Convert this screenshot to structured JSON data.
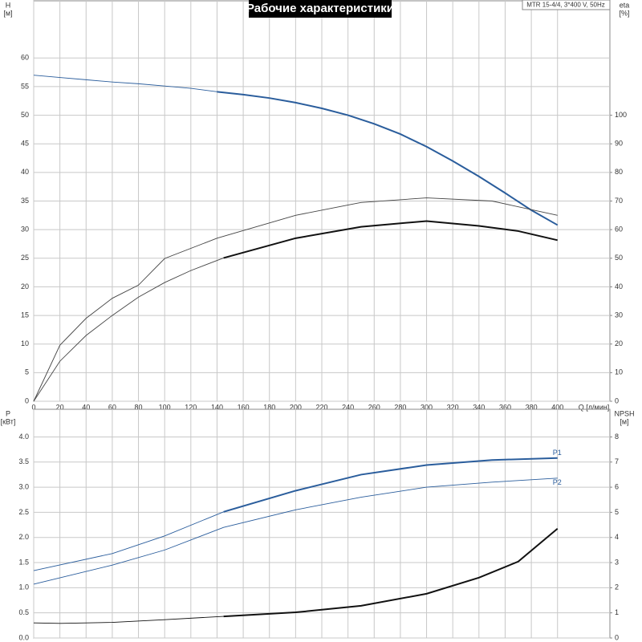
{
  "title": "Рабочие характеристики",
  "note": "MTR 15-4/4, 3*400 V, 50Hz",
  "chart_data": [
    {
      "type": "line",
      "ylabel": "H",
      "yunit": "[м]",
      "y2label": "eta",
      "y2unit": "[%]",
      "xlabel": "Q [л/мин]",
      "xlim": [
        0,
        440
      ],
      "xticks": [
        0,
        20,
        40,
        60,
        80,
        100,
        120,
        140,
        160,
        180,
        200,
        220,
        240,
        260,
        280,
        300,
        320,
        340,
        360,
        380,
        400
      ],
      "ylim": [
        0,
        70
      ],
      "yticks": [
        0,
        5,
        10,
        15,
        20,
        25,
        30,
        35,
        40,
        45,
        50,
        55,
        60
      ],
      "y2lim": [
        0,
        140
      ],
      "y2ticks": [
        0,
        10,
        20,
        30,
        40,
        50,
        60,
        70,
        80,
        90,
        100
      ],
      "grid": true,
      "series": [
        {
          "color": "#2a5d9c",
          "weight": "thin",
          "x": [
            0,
            20,
            40,
            60,
            80,
            100,
            120,
            140
          ],
          "values": [
            57,
            56.6,
            56.2,
            55.8,
            55.5,
            55.1,
            54.7,
            54.1
          ]
        },
        {
          "color": "#2a5d9c",
          "weight": "thick",
          "x": [
            140,
            160,
            180,
            200,
            220,
            240,
            260,
            280,
            300,
            320,
            340,
            360,
            380,
            400
          ],
          "values": [
            54.1,
            53.6,
            53,
            52.2,
            51.2,
            50,
            48.5,
            46.7,
            44.5,
            42,
            39.3,
            36.4,
            33.4,
            30.8
          ]
        },
        {
          "color": "#444444",
          "weight": "thin",
          "axis": "y2",
          "x": [
            0,
            20,
            40,
            60,
            80,
            100,
            140,
            200,
            250,
            300,
            350,
            400
          ],
          "values": [
            0,
            19.6,
            29,
            36,
            40.6,
            49.9,
            57,
            65,
            69.5,
            71.1,
            70,
            65
          ]
        },
        {
          "color": "#444444",
          "weight": "thin",
          "axis": "y2",
          "x": [
            0,
            20,
            40,
            60,
            80,
            100,
            120,
            145
          ],
          "values": [
            0,
            14,
            23,
            30,
            36.4,
            41.5,
            45.7,
            50.1
          ]
        },
        {
          "color": "#111111",
          "weight": "thick",
          "axis": "y2",
          "x": [
            145,
            200,
            250,
            300,
            340,
            370,
            400
          ],
          "values": [
            50.1,
            57,
            61,
            63,
            61.3,
            59.5,
            56.3
          ]
        }
      ]
    },
    {
      "type": "line",
      "ylabel": "P",
      "yunit": "[кВт]",
      "y2label": "NPSH",
      "y2unit": "[м]",
      "xlim": [
        0,
        440
      ],
      "xticks": [
        0,
        20,
        40,
        60,
        80,
        100,
        120,
        140,
        160,
        180,
        200,
        220,
        240,
        260,
        280,
        300,
        320,
        340,
        360,
        380,
        400
      ],
      "ylim": [
        0,
        4.55
      ],
      "yticks": [
        {
          "value": 0,
          "label": "0.0"
        },
        0.5,
        {
          "value": 1,
          "label": "1.0"
        },
        1.5,
        {
          "value": 2,
          "label": "2.0"
        },
        2.5,
        {
          "value": 3,
          "label": "3.0"
        },
        3.5,
        {
          "value": 4,
          "label": "4.0"
        }
      ],
      "y2lim": [
        0,
        9.1
      ],
      "y2ticks": [
        0,
        1,
        2,
        3,
        4,
        5,
        6,
        7,
        8
      ],
      "grid": true,
      "series": [
        {
          "color": "#2a5d9c",
          "weight": "thin",
          "x": [
            0,
            60,
            100,
            145
          ],
          "values": [
            1.34,
            1.68,
            2.03,
            2.51
          ]
        },
        {
          "name": "P1",
          "color": "#2a5d9c",
          "weight": "thick",
          "x": [
            145,
            200,
            250,
            300,
            350,
            400
          ],
          "values": [
            2.51,
            2.93,
            3.25,
            3.44,
            3.54,
            3.58
          ]
        },
        {
          "name": "P2",
          "color": "#2a5d9c",
          "weight": "thin",
          "x": [
            0,
            60,
            100,
            145,
            200,
            250,
            300,
            350,
            400
          ],
          "values": [
            1.07,
            1.45,
            1.75,
            2.2,
            2.55,
            2.8,
            3,
            3.1,
            3.18
          ]
        },
        {
          "color": "#111111",
          "weight": "thin",
          "axis": "y2",
          "x": [
            0,
            20,
            60,
            100,
            145
          ],
          "values": [
            0.6,
            0.58,
            0.62,
            0.73,
            0.86
          ]
        },
        {
          "color": "#111111",
          "weight": "thick",
          "axis": "y2",
          "x": [
            145,
            200,
            250,
            300,
            340,
            370,
            400
          ],
          "values": [
            0.86,
            1.02,
            1.28,
            1.76,
            2.4,
            3.04,
            4.35
          ]
        }
      ]
    }
  ]
}
